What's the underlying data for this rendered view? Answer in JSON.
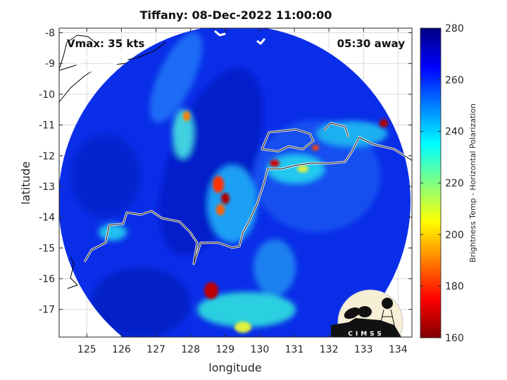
{
  "title": "Tiffany: 08-Dec-2022 11:00:00",
  "annotations": {
    "vmax": "Vmax: 35 kts",
    "time_away": "05:30 away"
  },
  "axes": {
    "xlabel": "longitude",
    "ylabel": "latitude",
    "xticks": [
      "125",
      "126",
      "127",
      "128",
      "129",
      "130",
      "131",
      "132",
      "133",
      "134"
    ],
    "yticks": [
      "-8",
      "-9",
      "-10",
      "-11",
      "-12",
      "-13",
      "-14",
      "-15",
      "-16",
      "-17"
    ],
    "xlim": [
      124.2,
      134.4
    ],
    "ylim": [
      -17.9,
      -7.85
    ],
    "grid": true
  },
  "colorbar": {
    "label": "Brightness Temp - Horizontal Polarization",
    "ticks": [
      "280",
      "260",
      "240",
      "220",
      "200",
      "180",
      "160"
    ],
    "range": [
      160,
      280
    ],
    "colormap": "jet (reversed: low=dark red, high=dark blue)"
  },
  "logo": {
    "text": "CIMSS"
  }
}
